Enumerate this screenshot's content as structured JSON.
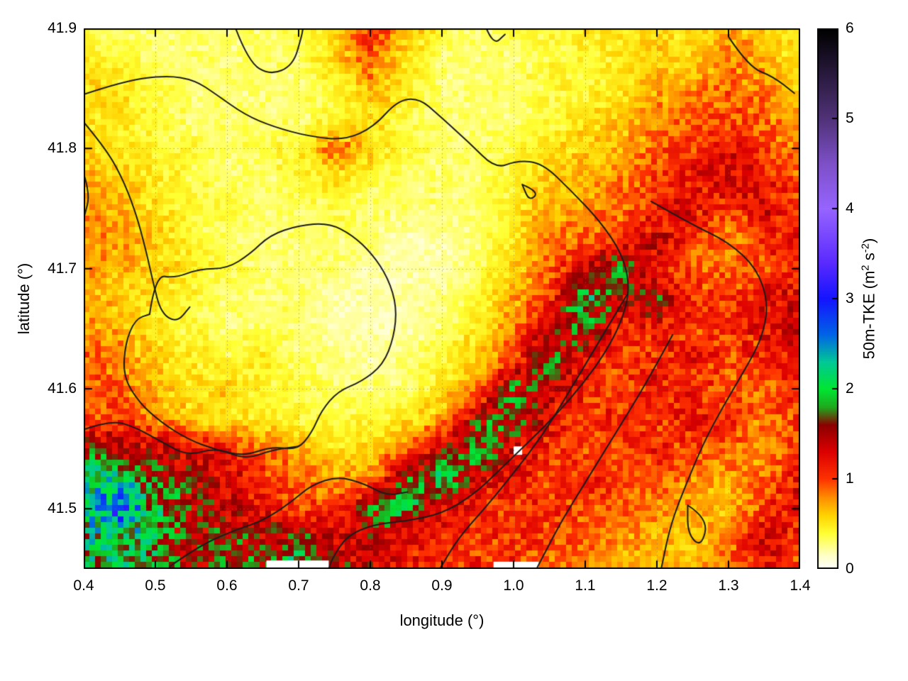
{
  "figure": {
    "background": "#ffffff",
    "axes": {
      "x": {
        "label": "longitude (°)",
        "tick_values": [
          0.4,
          0.5,
          0.6,
          0.7,
          0.8,
          0.9,
          1.0,
          1.1,
          1.2,
          1.3,
          1.4
        ],
        "tick_labels": [
          "0.4",
          "0.5",
          "0.6",
          "0.7",
          "0.8",
          "0.9",
          "1.0",
          "1.1",
          "1.2",
          "1.3",
          "1.4"
        ]
      },
      "y": {
        "label": "latitude (°)",
        "tick_values": [
          41.5,
          41.6,
          41.7,
          41.8,
          41.9
        ],
        "tick_labels": [
          "41.5",
          "41.6",
          "41.7",
          "41.8",
          "41.9"
        ]
      },
      "colorbar": {
        "label_plain": "50m-TKE (m2 s-2)",
        "label_parts": {
          "pre": "50m-TKE (m",
          "sup1": "2",
          "mid": " s",
          "sup2": "-2",
          "post": ")"
        },
        "tick_values": [
          0,
          1,
          2,
          3,
          4,
          5,
          6
        ],
        "tick_labels": [
          "0",
          "1",
          "2",
          "3",
          "4",
          "5",
          "6"
        ]
      }
    }
  },
  "chart_data": {
    "type": "heatmap",
    "title": "",
    "xlabel": "longitude (°)",
    "ylabel": "latitude (°)",
    "colorbar_label": "50m-TKE (m^2 s^-2)",
    "xlim": [
      0.4,
      1.4
    ],
    "ylim": [
      41.45,
      41.9
    ],
    "clim": [
      0,
      6
    ],
    "grid": {
      "lon_start": 0.4,
      "lon_step": 0.05,
      "lon_count": 21,
      "lat_start": 41.9,
      "lat_step": -0.025,
      "lat_count": 19
    },
    "values": [
      [
        0.4,
        0.3,
        0.3,
        0.3,
        0.3,
        0.3,
        0.4,
        0.5,
        1.1,
        0.7,
        0.4,
        0.3,
        0.4,
        0.4,
        0.5,
        0.5,
        0.6,
        0.5,
        0.7,
        0.6,
        0.4
      ],
      [
        0.5,
        0.4,
        0.3,
        0.3,
        0.3,
        0.3,
        0.3,
        0.6,
        0.9,
        0.5,
        0.3,
        0.3,
        0.3,
        0.4,
        0.4,
        0.5,
        0.6,
        0.6,
        0.8,
        0.7,
        0.5
      ],
      [
        0.6,
        0.5,
        0.4,
        0.3,
        0.3,
        0.3,
        0.3,
        0.4,
        0.7,
        0.5,
        0.3,
        0.3,
        0.3,
        0.4,
        0.4,
        0.5,
        0.7,
        0.8,
        0.9,
        0.8,
        0.6
      ],
      [
        0.5,
        0.5,
        0.4,
        0.3,
        0.3,
        0.3,
        0.3,
        0.4,
        0.5,
        0.4,
        0.3,
        0.3,
        0.3,
        0.4,
        0.5,
        0.6,
        0.8,
        0.9,
        1.0,
        0.9,
        0.7
      ],
      [
        0.6,
        0.5,
        0.4,
        0.4,
        0.3,
        0.4,
        0.4,
        0.9,
        0.6,
        0.4,
        0.3,
        0.3,
        0.4,
        0.5,
        0.6,
        0.7,
        0.9,
        1.0,
        1.2,
        1.0,
        0.8
      ],
      [
        0.7,
        0.6,
        0.5,
        0.4,
        0.3,
        0.3,
        0.4,
        0.5,
        0.4,
        0.3,
        0.3,
        0.3,
        0.4,
        0.6,
        0.7,
        0.8,
        1.0,
        1.2,
        1.3,
        1.2,
        0.9
      ],
      [
        0.8,
        0.7,
        0.5,
        0.4,
        0.4,
        0.3,
        0.3,
        0.4,
        0.3,
        0.3,
        0.3,
        0.3,
        0.5,
        0.7,
        0.8,
        0.9,
        1.1,
        1.3,
        1.0,
        1.3,
        1.0
      ],
      [
        0.7,
        0.8,
        0.6,
        0.4,
        0.3,
        0.3,
        0.3,
        0.3,
        0.3,
        0.2,
        0.2,
        0.3,
        0.5,
        0.8,
        0.9,
        1.0,
        1.4,
        1.0,
        0.8,
        1.1,
        1.2
      ],
      [
        0.8,
        0.7,
        0.6,
        0.5,
        0.4,
        0.3,
        0.3,
        0.3,
        0.2,
        0.2,
        0.2,
        0.3,
        0.6,
        0.9,
        1.3,
        1.8,
        1.1,
        0.9,
        0.9,
        1.0,
        1.1
      ],
      [
        0.7,
        0.6,
        0.5,
        0.4,
        0.3,
        0.3,
        0.3,
        0.2,
        0.2,
        0.2,
        0.3,
        0.4,
        0.7,
        1.0,
        2.0,
        1.4,
        1.6,
        1.1,
        1.0,
        1.2,
        1.3
      ],
      [
        0.8,
        0.7,
        0.5,
        0.4,
        0.3,
        0.3,
        0.3,
        0.2,
        0.2,
        0.2,
        0.3,
        0.5,
        0.8,
        1.4,
        1.8,
        1.1,
        1.2,
        1.0,
        1.1,
        1.2,
        1.4
      ],
      [
        0.9,
        0.8,
        0.6,
        0.5,
        0.4,
        0.5,
        0.3,
        0.3,
        0.2,
        0.3,
        0.4,
        0.6,
        1.0,
        1.8,
        1.2,
        1.0,
        1.1,
        1.2,
        1.0,
        1.1,
        1.3
      ],
      [
        1.0,
        0.9,
        0.7,
        0.5,
        0.6,
        0.4,
        0.4,
        0.3,
        0.3,
        0.3,
        0.5,
        0.8,
        1.7,
        1.4,
        1.1,
        1.0,
        1.2,
        1.1,
        1.0,
        0.9,
        1.2
      ],
      [
        0.9,
        1.1,
        0.8,
        0.6,
        0.5,
        0.5,
        0.4,
        0.4,
        0.4,
        0.5,
        0.7,
        1.5,
        1.8,
        1.2,
        1.0,
        1.1,
        1.0,
        1.2,
        1.1,
        0.8,
        1.0
      ],
      [
        1.6,
        1.4,
        1.4,
        1.3,
        1.1,
        0.9,
        0.7,
        0.5,
        0.6,
        0.8,
        1.4,
        1.9,
        1.3,
        1.1,
        1.0,
        1.0,
        1.1,
        1.0,
        0.9,
        0.7,
        1.1
      ],
      [
        2.0,
        2.2,
        1.7,
        1.5,
        1.3,
        1.1,
        0.9,
        0.7,
        0.8,
        1.6,
        2.0,
        1.3,
        1.2,
        1.0,
        1.1,
        1.0,
        0.9,
        0.8,
        0.7,
        0.9,
        1.2
      ],
      [
        2.1,
        2.8,
        1.9,
        1.6,
        1.4,
        1.2,
        1.0,
        1.0,
        1.7,
        1.9,
        1.3,
        1.1,
        1.0,
        1.1,
        1.0,
        0.9,
        0.8,
        0.7,
        0.6,
        1.0,
        1.3
      ],
      [
        2.0,
        2.1,
        1.8,
        1.5,
        1.6,
        1.5,
        1.7,
        1.3,
        1.4,
        1.2,
        1.1,
        1.0,
        1.1,
        1.0,
        0.9,
        0.8,
        0.7,
        0.6,
        0.8,
        1.4,
        1.0
      ],
      [
        1.9,
        2.0,
        1.9,
        1.5,
        1.6,
        1.7,
        2.0,
        1.5,
        1.3,
        1.2,
        1.0,
        1.1,
        1.0,
        0.9,
        0.8,
        0.7,
        0.6,
        0.7,
        0.9,
        1.2,
        0.9
      ]
    ],
    "palette": [
      [
        0.0,
        "#ffffff"
      ],
      [
        0.15,
        "#ffffc8"
      ],
      [
        0.4,
        "#ffff32"
      ],
      [
        0.6,
        "#ffd200"
      ],
      [
        0.8,
        "#ff8c00"
      ],
      [
        1.0,
        "#ff3200"
      ],
      [
        1.3,
        "#dc0000"
      ],
      [
        1.6,
        "#8c0000"
      ],
      [
        1.8,
        "#1eaa1e"
      ],
      [
        2.0,
        "#00e632"
      ],
      [
        2.3,
        "#00c896"
      ],
      [
        2.6,
        "#0064e6"
      ],
      [
        3.0,
        "#1414ff"
      ],
      [
        3.4,
        "#5a2aff"
      ],
      [
        4.0,
        "#9664ff"
      ],
      [
        4.5,
        "#7d50c8"
      ],
      [
        5.0,
        "#503278"
      ],
      [
        5.5,
        "#28193c"
      ],
      [
        6.0,
        "#000000"
      ]
    ],
    "contour_color": "#1c1c1c",
    "contours_lonlat": [
      [
        [
          0.4,
          41.845
        ],
        [
          0.455,
          41.856
        ],
        [
          0.515,
          41.861
        ],
        [
          0.555,
          41.857
        ],
        [
          0.585,
          41.845
        ],
        [
          0.625,
          41.828
        ],
        [
          0.665,
          41.818
        ],
        [
          0.715,
          41.81
        ],
        [
          0.765,
          41.807
        ],
        [
          0.805,
          41.818
        ],
        [
          0.838,
          41.84
        ],
        [
          0.868,
          41.842
        ],
        [
          0.895,
          41.828
        ],
        [
          0.938,
          41.805
        ],
        [
          0.975,
          41.783
        ],
        [
          1.005,
          41.79
        ],
        [
          1.04,
          41.788
        ],
        [
          1.08,
          41.765
        ],
        [
          1.12,
          41.74
        ],
        [
          1.152,
          41.712
        ],
        [
          1.163,
          41.683
        ],
        [
          1.15,
          41.655
        ],
        [
          1.128,
          41.63
        ],
        [
          1.098,
          41.605
        ],
        [
          1.062,
          41.58
        ],
        [
          1.025,
          41.558
        ],
        [
          0.985,
          41.535
        ],
        [
          0.945,
          41.512
        ],
        [
          0.9,
          41.496
        ],
        [
          0.852,
          41.49
        ],
        [
          0.805,
          41.487
        ],
        [
          0.768,
          41.478
        ],
        [
          0.748,
          41.46
        ],
        [
          0.742,
          41.45
        ]
      ],
      [
        [
          0.492,
          41.662
        ],
        [
          0.5,
          41.695
        ],
        [
          0.527,
          41.692
        ],
        [
          0.562,
          41.7
        ],
        [
          0.6,
          41.7
        ],
        [
          0.632,
          41.712
        ],
        [
          0.66,
          41.728
        ],
        [
          0.7,
          41.736
        ],
        [
          0.742,
          41.738
        ],
        [
          0.775,
          41.728
        ],
        [
          0.803,
          41.712
        ],
        [
          0.825,
          41.692
        ],
        [
          0.837,
          41.668
        ],
        [
          0.833,
          41.643
        ],
        [
          0.818,
          41.62
        ],
        [
          0.788,
          41.606
        ],
        [
          0.755,
          41.598
        ],
        [
          0.732,
          41.582
        ],
        [
          0.718,
          41.563
        ],
        [
          0.698,
          41.549
        ],
        [
          0.662,
          41.552
        ],
        [
          0.625,
          41.544
        ],
        [
          0.585,
          41.549
        ],
        [
          0.545,
          41.558
        ],
        [
          0.508,
          41.572
        ],
        [
          0.478,
          41.588
        ],
        [
          0.455,
          41.61
        ],
        [
          0.458,
          41.638
        ],
        [
          0.472,
          41.658
        ],
        [
          0.492,
          41.662
        ]
      ],
      [
        [
          0.4,
          41.822
        ],
        [
          0.428,
          41.802
        ],
        [
          0.452,
          41.778
        ],
        [
          0.472,
          41.748
        ],
        [
          0.487,
          41.715
        ],
        [
          0.497,
          41.688
        ],
        [
          0.508,
          41.663
        ],
        [
          0.53,
          41.655
        ],
        [
          0.548,
          41.668
        ]
      ],
      [
        [
          0.52,
          41.452
        ],
        [
          0.558,
          41.468
        ],
        [
          0.605,
          41.481
        ],
        [
          0.65,
          41.49
        ],
        [
          0.688,
          41.505
        ],
        [
          0.718,
          41.52
        ],
        [
          0.755,
          41.527
        ],
        [
          0.792,
          41.521
        ],
        [
          0.822,
          41.511
        ],
        [
          0.852,
          41.514
        ]
      ],
      [
        [
          1.192,
          41.756
        ],
        [
          1.248,
          41.737
        ],
        [
          1.3,
          41.722
        ],
        [
          1.34,
          41.7
        ],
        [
          1.356,
          41.67
        ],
        [
          1.346,
          41.641
        ],
        [
          1.322,
          41.615
        ],
        [
          1.293,
          41.586
        ],
        [
          1.266,
          41.556
        ],
        [
          1.241,
          41.521
        ],
        [
          1.219,
          41.487
        ],
        [
          1.206,
          41.45
        ]
      ],
      [
        [
          1.158,
          41.678
        ],
        [
          1.13,
          41.65
        ],
        [
          1.101,
          41.621
        ],
        [
          1.071,
          41.591
        ],
        [
          1.04,
          41.561
        ],
        [
          1.003,
          41.532
        ],
        [
          0.962,
          41.502
        ],
        [
          0.923,
          41.476
        ],
        [
          0.897,
          41.45
        ]
      ],
      [
        [
          1.222,
          41.645
        ],
        [
          1.192,
          41.612
        ],
        [
          1.161,
          41.581
        ],
        [
          1.13,
          41.551
        ],
        [
          1.099,
          41.521
        ],
        [
          1.068,
          41.491
        ],
        [
          1.045,
          41.465
        ],
        [
          1.032,
          41.45
        ]
      ],
      [
        [
          1.012,
          41.77
        ],
        [
          1.036,
          41.764
        ],
        [
          1.022,
          41.756
        ],
        [
          1.012,
          41.77
        ]
      ],
      [
        [
          1.243,
          41.503
        ],
        [
          1.272,
          41.492
        ],
        [
          1.262,
          41.468
        ],
        [
          1.243,
          41.479
        ],
        [
          1.243,
          41.503
        ]
      ],
      [
        [
          1.3,
          41.893
        ],
        [
          1.328,
          41.868
        ],
        [
          1.362,
          41.86
        ],
        [
          1.392,
          41.846
        ]
      ],
      [
        [
          0.962,
          41.9
        ],
        [
          0.972,
          41.886
        ],
        [
          0.988,
          41.895
        ]
      ],
      [
        [
          0.612,
          41.9
        ],
        [
          0.63,
          41.872
        ],
        [
          0.66,
          41.861
        ],
        [
          0.692,
          41.869
        ],
        [
          0.704,
          41.893
        ],
        [
          0.706,
          41.9
        ]
      ],
      [
        [
          0.4,
          41.779
        ],
        [
          0.409,
          41.762
        ],
        [
          0.401,
          41.744
        ]
      ],
      [
        [
          0.4,
          41.566
        ],
        [
          0.438,
          41.574
        ],
        [
          0.472,
          41.568
        ],
        [
          0.508,
          41.556
        ],
        [
          0.545,
          41.544
        ],
        [
          0.585,
          41.551
        ],
        [
          0.625,
          41.541
        ],
        [
          0.663,
          41.549
        ],
        [
          0.7,
          41.552
        ]
      ]
    ],
    "masked_lonlat_rects": [
      [
        0.655,
        41.45,
        0.742,
        41.457
      ],
      [
        0.972,
        41.45,
        1.035,
        41.456
      ],
      [
        1.0,
        41.545,
        1.012,
        41.552
      ]
    ],
    "gridlines": {
      "x": [
        0.5,
        0.6,
        0.7,
        0.8,
        0.9,
        1.0,
        1.1,
        1.2,
        1.3
      ],
      "y": [
        41.5,
        41.6,
        41.7,
        41.8
      ]
    },
    "grid_on": true,
    "legend_position": "right-colorbar"
  }
}
